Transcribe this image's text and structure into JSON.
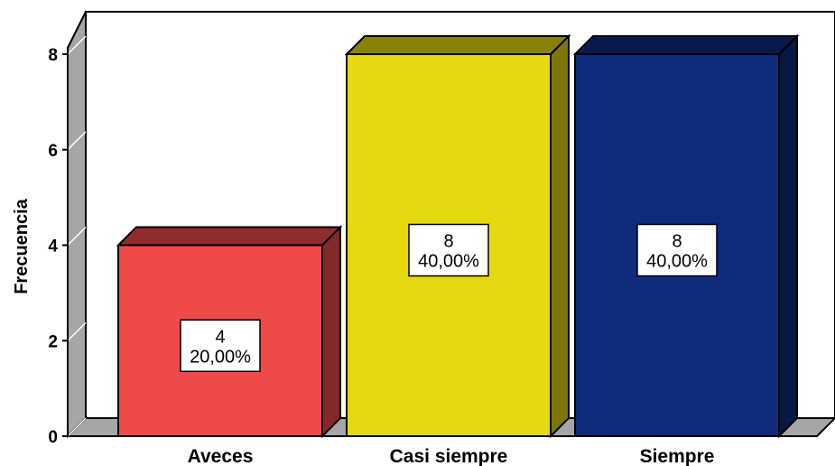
{
  "chart_data": {
    "type": "bar",
    "style": "3d",
    "categories": [
      "Aveces",
      "Casi siempre",
      "Siempre"
    ],
    "values": [
      4,
      8,
      8
    ],
    "percent_labels": [
      "20,00%",
      "40,00%",
      "40,00%"
    ],
    "colors": [
      "#ef4a4a",
      "#e5d80f",
      "#0e2b7c"
    ],
    "ylabel": "Frecuencia",
    "xlabel": "",
    "ylim": [
      0,
      8
    ],
    "yticks": [
      "0",
      "2",
      "4",
      "6",
      "8"
    ],
    "grid": false,
    "legend": "none"
  }
}
